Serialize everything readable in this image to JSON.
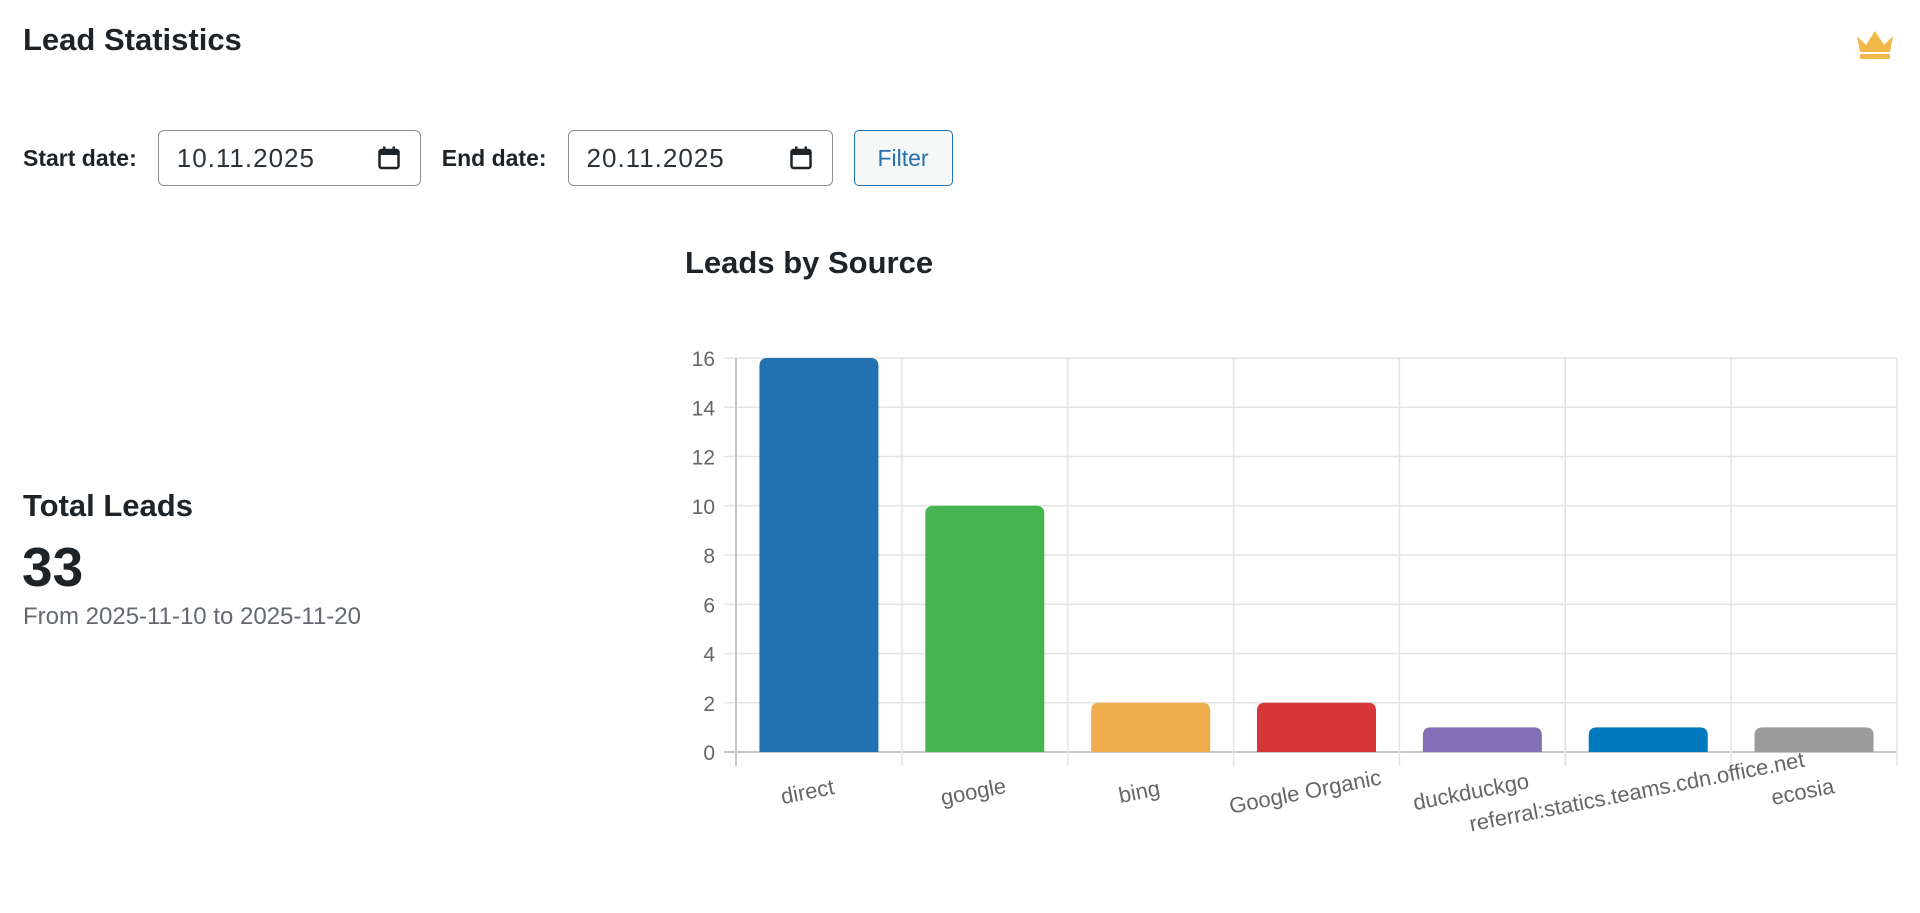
{
  "page": {
    "title": "Lead Statistics",
    "premium_icon": "crown-icon"
  },
  "filters": {
    "start_label": "Start date:",
    "start_value": "10.11.2025",
    "end_label": "End date:",
    "end_value": "20.11.2025",
    "filter_button": "Filter"
  },
  "totals": {
    "heading": "Total Leads",
    "value": "33",
    "range_text": "From 2025-11-10 to 2025-11-20"
  },
  "colors": {
    "crown": "#f0b849",
    "accent": "#2271b1"
  },
  "chart_title": "Leads by Source",
  "chart_data": {
    "type": "bar",
    "categories": [
      "direct",
      "google",
      "bing",
      "Google Organic",
      "duckduckgo",
      "referral:statics.teams.cdn.office.net",
      "ecosia"
    ],
    "values": [
      16,
      10,
      2,
      2,
      1,
      1,
      1
    ],
    "colors": [
      "#2271b1",
      "#46b450",
      "#f0ad4e",
      "#d63638",
      "#8270b8",
      "#0079bf",
      "#9b9b9b"
    ],
    "ylim": [
      0,
      16
    ],
    "yticks": [
      0,
      2,
      4,
      6,
      8,
      10,
      12,
      14,
      16
    ],
    "grid": true,
    "legend": "none"
  }
}
